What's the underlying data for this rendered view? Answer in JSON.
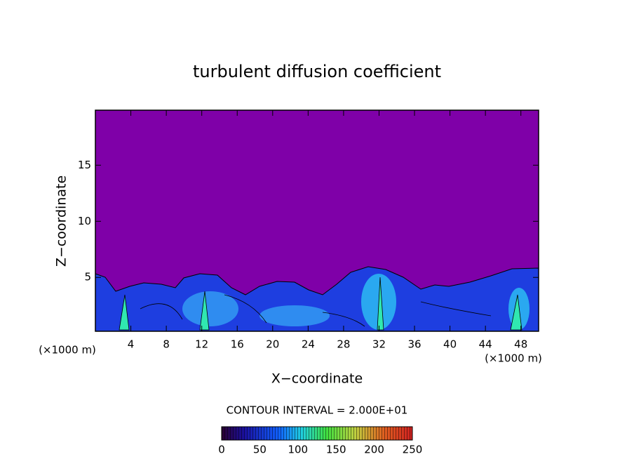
{
  "chart_data": {
    "type": "contour",
    "title": "turbulent diffusion coefficient",
    "x_label": "X−coordinate",
    "y_label": "Z−coordinate",
    "x_unit_left": "(×1000 m)",
    "x_unit_right": "(×1000 m)",
    "contour_interval": "CONTOUR INTERVAL = 2.000E+01",
    "xlim": [
      0,
      50
    ],
    "xticks": [
      4,
      8,
      12,
      16,
      20,
      24,
      28,
      32,
      36,
      40,
      44,
      48
    ],
    "ylim": [
      0.2,
      19.9
    ],
    "yticks": [
      5,
      10,
      15
    ],
    "clim": [
      0,
      250
    ],
    "cticks": [
      0,
      50,
      100,
      150,
      200,
      250
    ]
  }
}
